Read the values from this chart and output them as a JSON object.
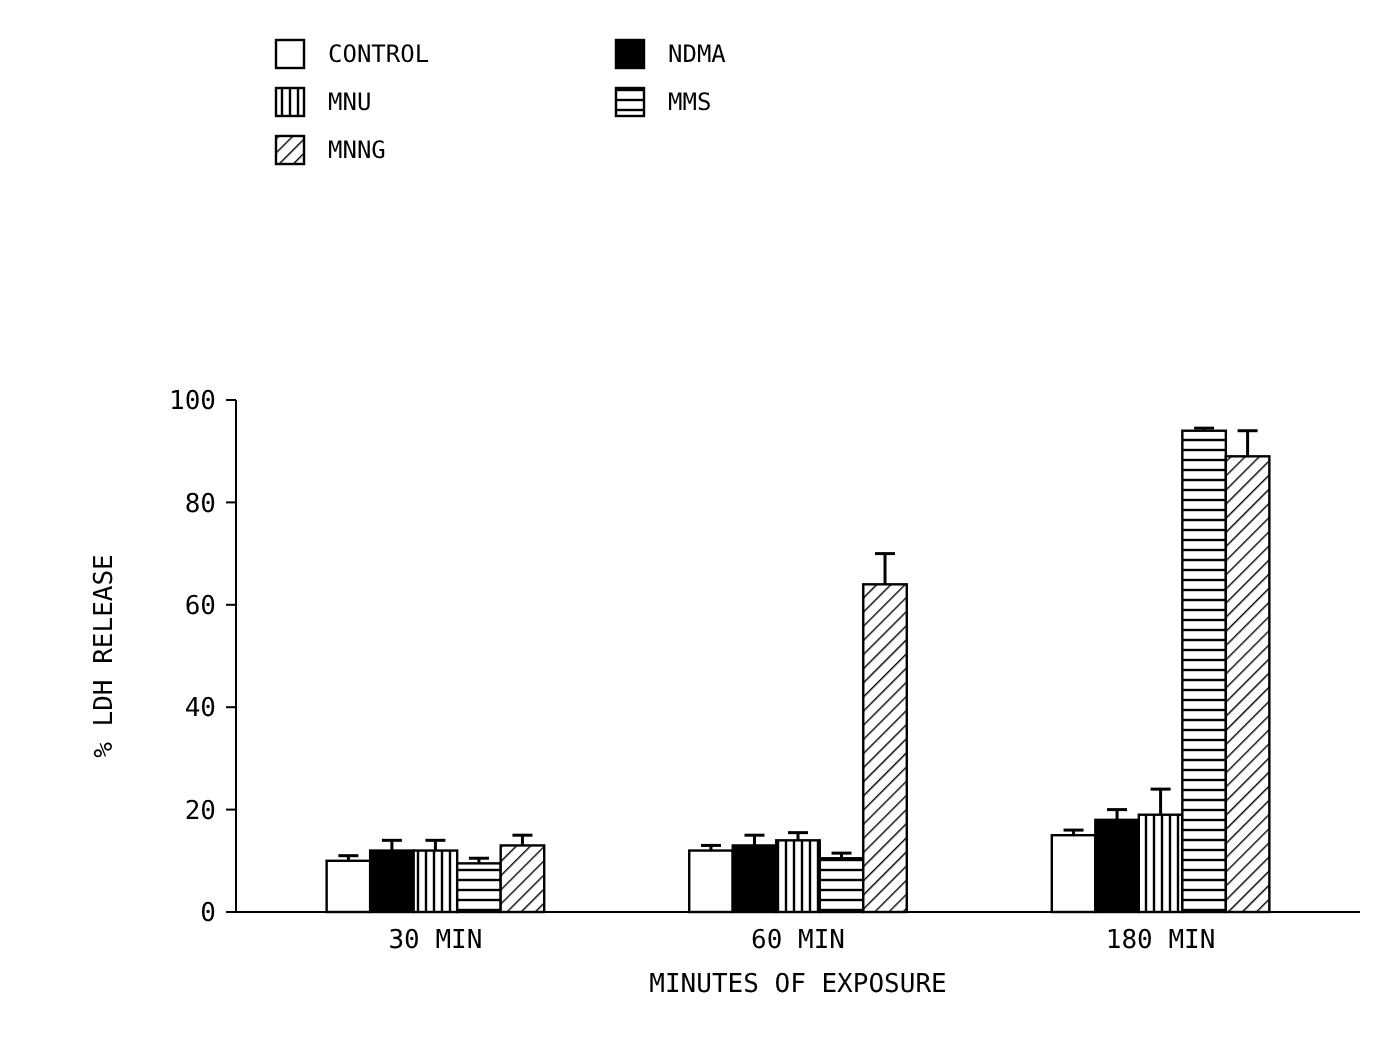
{
  "chart_data": {
    "type": "bar",
    "xlabel": "MINUTES OF EXPOSURE",
    "ylabel": "% LDH RELEASE",
    "categories": [
      "30 MIN",
      "60 MIN",
      "180 MIN"
    ],
    "series": [
      {
        "name": "CONTROL",
        "color": "#ffffff",
        "values": [
          10,
          12,
          15
        ],
        "errors": [
          1,
          1,
          1
        ]
      },
      {
        "name": "NDMA",
        "color": "#000000",
        "values": [
          12,
          13,
          18
        ],
        "errors": [
          2,
          2,
          2
        ]
      },
      {
        "name": "MNU",
        "color": "#000000",
        "values": [
          12,
          14,
          19
        ],
        "errors": [
          2,
          1.5,
          5
        ]
      },
      {
        "name": "MMS",
        "color": "#000000",
        "values": [
          9.5,
          10.5,
          94
        ],
        "errors": [
          1,
          1,
          0.5
        ]
      },
      {
        "name": "MNNG",
        "color": "#000000",
        "values": [
          13,
          64,
          89
        ],
        "errors": [
          2,
          6,
          5
        ]
      }
    ],
    "ylim": [
      0,
      100
    ],
    "yticks": [
      0,
      20,
      40,
      60,
      80,
      100
    ],
    "legend": "top left"
  }
}
